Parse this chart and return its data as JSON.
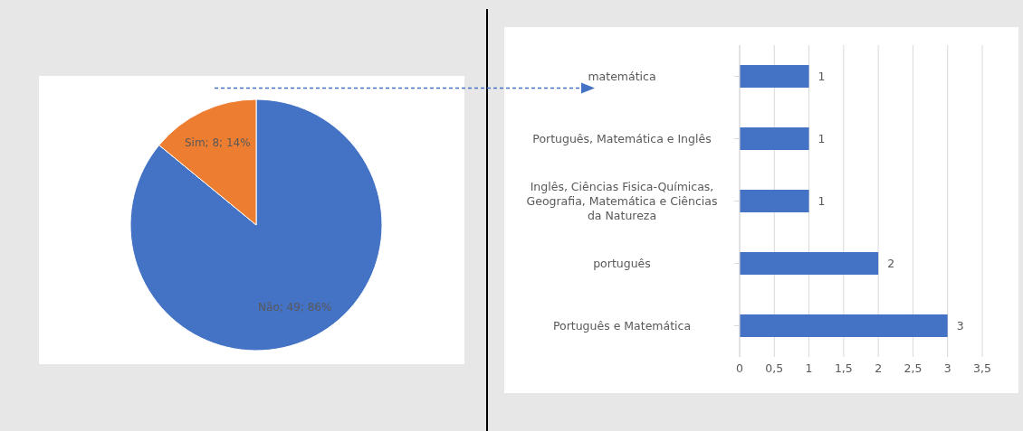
{
  "chart_data": [
    {
      "type": "pie",
      "categories": [
        "Não",
        "Sim"
      ],
      "values": [
        49,
        8
      ],
      "colors": [
        "#4472c4",
        "#ed7d31"
      ],
      "value_labels": [
        "49; 86%",
        "8; 14%"
      ]
    },
    {
      "type": "bar",
      "orientation": "horizontal",
      "categories": [
        "matemática",
        "Português, Matemática e Inglês",
        "Inglês, Ciências Fisica-Químicas, Geografia, Matemática e Ciências da Natureza",
        "português",
        "Português e Matemática"
      ],
      "values": [
        1,
        1,
        1,
        2,
        3
      ],
      "color": "#4472c4",
      "xlim": [
        0,
        3.5
      ],
      "xticks": [
        0,
        {
          "value": 0.5,
          "label": "0,5"
        },
        1,
        {
          "value": 1.5,
          "label": "1,5"
        },
        2,
        {
          "value": 2.5,
          "label": "2,5"
        },
        3,
        {
          "value": 3.5,
          "label": "3,5"
        }
      ],
      "grid": "x",
      "data_labels": true
    }
  ]
}
